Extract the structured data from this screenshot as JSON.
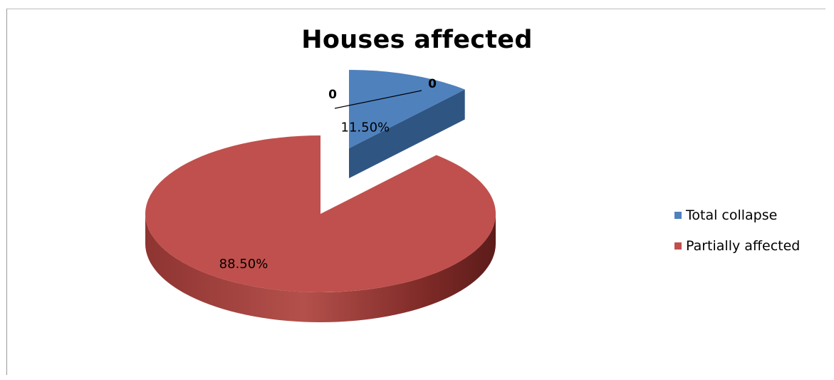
{
  "chart_data": {
    "type": "pie",
    "title": "Houses affected",
    "categories": [
      "Total collapse",
      "Partially affected"
    ],
    "values": [
      11.5,
      88.5
    ],
    "data_labels": [
      "11.50%",
      "88.50%"
    ],
    "extra_labels": [
      "0",
      "0"
    ],
    "colors": [
      "#4f81bd",
      "#c0504d"
    ],
    "style": "3d-exploded",
    "legend_position": "right"
  }
}
